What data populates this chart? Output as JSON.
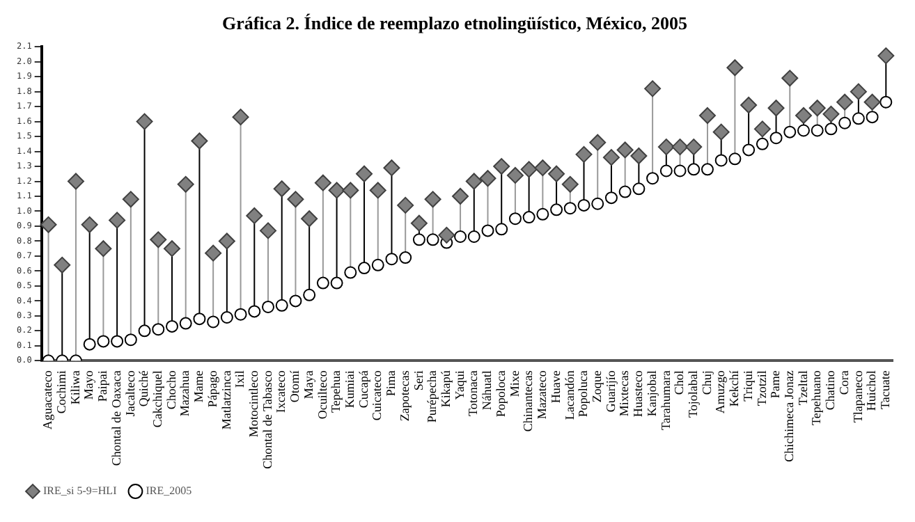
{
  "chart_data": {
    "type": "scatter",
    "title": "Gráfica 2. Índice de reemplazo etnolingüístico, México, 2005",
    "categories": [
      "Aguacateco",
      "Cochimi",
      "Kiliwa",
      "Mayo",
      "Paipai",
      "Chontal de Oaxaca",
      "Jacalteco",
      "Quiché",
      "Cakchiquel",
      "Chocho",
      "Mazahua",
      "Mame",
      "Pápago",
      "Matlatzinca",
      "Ixil",
      "Motocintleco",
      "Chontal de Tabasco",
      "Ixcateco",
      "Otomí",
      "Maya",
      "Ocuilteco",
      "Tepehua",
      "Kumiai",
      "Cucapá",
      "Cuicateco",
      "Pima",
      "Zapotecas",
      "Seri",
      "Purépecha",
      "Kikapú",
      "Yaqui",
      "Totonaca",
      "Náhuatl",
      "Popoloca",
      "Mixe",
      "Chinantecas",
      "Mazateco",
      "Huave",
      "Lacandón",
      "Popoluca",
      "Zoque",
      "Guarijío",
      "Mixtecas",
      "Huasteco",
      "Kanjobal",
      "Tarahumara",
      "Chol",
      "Tojolabal",
      "Chuj",
      "Amuzgo",
      "Kekchí",
      "Triqui",
      "Tzotzil",
      "Pame",
      "Chichimeca Jonaz",
      "Tzeltal",
      "Tepehuano",
      "Chatino",
      "Cora",
      "Tlapaneco",
      "Huichol",
      "Tacuate"
    ],
    "series": [
      {
        "name": "IRE_2005",
        "color": "#ffffff",
        "marker": "circle",
        "values": [
          0,
          0,
          0,
          0.11,
          0.13,
          0.13,
          0.14,
          0.2,
          0.21,
          0.23,
          0.25,
          0.28,
          0.26,
          0.29,
          0.31,
          0.33,
          0.36,
          0.37,
          0.4,
          0.44,
          0.52,
          0.52,
          0.59,
          0.62,
          0.64,
          0.68,
          0.69,
          0.81,
          0.81,
          0.79,
          0.83,
          0.83,
          0.87,
          0.88,
          0.95,
          0.96,
          0.98,
          1.01,
          1.02,
          1.04,
          1.05,
          1.09,
          1.13,
          1.15,
          1.22,
          1.27,
          1.27,
          1.28,
          1.28,
          1.34,
          1.35,
          1.41,
          1.45,
          1.49,
          1.53,
          1.54,
          1.54,
          1.55,
          1.59,
          1.62,
          1.63,
          1.73
        ]
      },
      {
        "name": "IRE_si 5-9=HLI",
        "color": "#808080",
        "marker": "diamond",
        "values": [
          0.91,
          0.64,
          1.2,
          0.91,
          0.75,
          0.94,
          1.08,
          1.6,
          0.81,
          0.75,
          1.18,
          1.47,
          0.72,
          0.8,
          1.63,
          0.97,
          0.87,
          1.15,
          1.08,
          0.95,
          1.19,
          1.14,
          1.14,
          1.25,
          1.14,
          1.29,
          1.04,
          0.92,
          1.08,
          0.84,
          1.1,
          1.2,
          1.22,
          1.3,
          1.24,
          1.28,
          1.29,
          1.25,
          1.18,
          1.38,
          1.46,
          1.36,
          1.41,
          1.37,
          1.82,
          1.43,
          1.43,
          1.43,
          1.64,
          1.53,
          1.96,
          1.71,
          1.55,
          1.69,
          1.89,
          1.64,
          1.69,
          1.65,
          1.73,
          1.8,
          1.73,
          2.04
        ]
      }
    ],
    "ylim": [
      0,
      2.1
    ],
    "yticks": [
      {
        "value": 0,
        "label": "0.0"
      },
      0.1,
      0.2,
      0.3,
      0.4,
      0.5,
      0.6,
      0.7,
      0.8,
      0.9,
      {
        "value": 1,
        "label": "1.0"
      },
      1.1,
      1.2,
      1.3,
      1.4,
      1.5,
      1.6,
      1.7,
      1.8,
      1.9,
      {
        "value": 2,
        "label": "2.0"
      },
      2.1
    ],
    "grid": false,
    "legend": "bottom left"
  }
}
